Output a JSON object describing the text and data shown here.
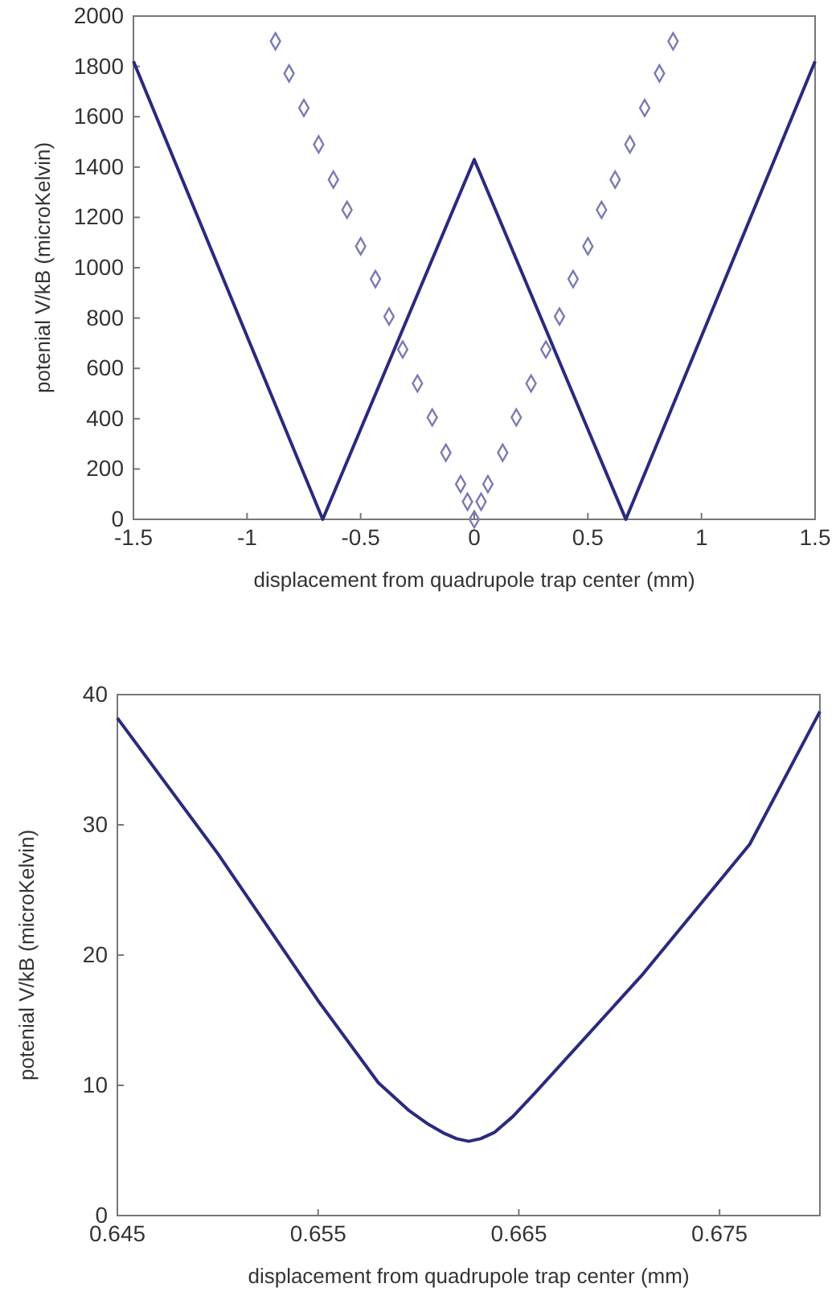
{
  "chart_data": [
    {
      "type": "line",
      "xlabel": "displacement from quadrupole trap center (mm)",
      "ylabel": "potenial V/kB (microKelvin)",
      "xlim": [
        -1.5,
        1.5
      ],
      "xticks": [
        -1.5,
        -1,
        -0.5,
        0,
        0.5,
        1,
        1.5
      ],
      "ylim": [
        0,
        2000
      ],
      "yticks": [
        0,
        200,
        400,
        600,
        800,
        1000,
        1200,
        1400,
        1600,
        1800,
        2000
      ],
      "grid": false,
      "series": [
        {
          "color": "#2a2a7e",
          "marker": "none",
          "x": [
            -1.5,
            -0.667,
            0,
            0.667,
            1.5
          ],
          "values": [
            1820,
            0,
            1430,
            0,
            1820
          ]
        },
        {
          "type": "scatter",
          "color": "#7a7ab4",
          "marker": "diamond",
          "x": [
            -0.875,
            -0.815,
            -0.75,
            -0.685,
            -0.62,
            -0.56,
            -0.5,
            -0.435,
            -0.375,
            -0.315,
            -0.25,
            -0.185,
            -0.125,
            -0.06,
            -0.03,
            0,
            0.03,
            0.06,
            0.125,
            0.185,
            0.25,
            0.315,
            0.375,
            0.435,
            0.5,
            0.56,
            0.62,
            0.685,
            0.75,
            0.815,
            0.875
          ],
          "values": [
            1900,
            1772,
            1635,
            1490,
            1350,
            1230,
            1085,
            955,
            806,
            675,
            540,
            405,
            265,
            140,
            70,
            0,
            70,
            140,
            265,
            405,
            540,
            675,
            806,
            955,
            1085,
            1230,
            1350,
            1490,
            1635,
            1772,
            1900
          ]
        }
      ]
    },
    {
      "type": "line",
      "xlabel": "displacement from quadrupole trap center (mm)",
      "ylabel": "potenial V/kB (microKelvin)",
      "xlim": [
        0.645,
        0.68
      ],
      "xticks": [
        0.645,
        0.655,
        0.665,
        0.675
      ],
      "ylim": [
        0,
        40
      ],
      "yticks": [
        0,
        10,
        20,
        30,
        40
      ],
      "grid": false,
      "series": [
        {
          "color": "#2a2a7e",
          "marker": "none",
          "x": [
            0.645,
            0.65,
            0.655,
            0.658,
            0.6595,
            0.6605,
            0.6613,
            0.6619,
            0.6625,
            0.6631,
            0.6638,
            0.6647,
            0.6658,
            0.6711,
            0.6765,
            0.68
          ],
          "values": [
            38.2,
            27.8,
            16.5,
            10.2,
            8.1,
            7.0,
            6.3,
            5.9,
            5.7,
            5.9,
            6.4,
            7.6,
            9.4,
            18.4,
            28.5,
            38.7
          ]
        }
      ]
    }
  ]
}
